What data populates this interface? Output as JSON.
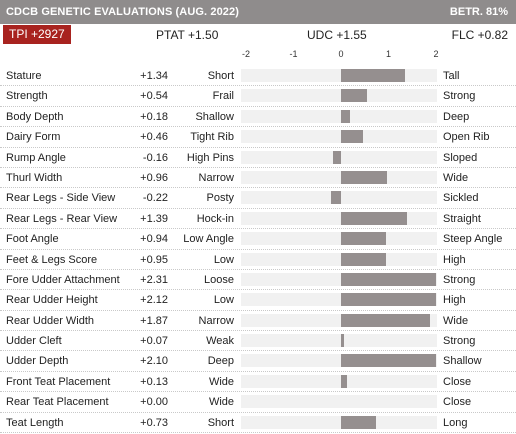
{
  "header": {
    "title": "CDCB GENETIC EVALUATIONS (AUG. 2022)",
    "reliability": "BETR. 81%"
  },
  "summary": {
    "tpi": "TPI +2927",
    "ptat": "PTAT +1.50",
    "udc": "UDC +1.55",
    "flc": "FLC +0.82"
  },
  "scale": {
    "ticks": [
      "-2",
      "-1",
      "0",
      "1",
      "2"
    ],
    "min": -2,
    "max": 2
  },
  "traits": [
    {
      "name": "Stature",
      "value": "+1.34",
      "num": 1.34,
      "low": "Short",
      "high": "Tall"
    },
    {
      "name": "Strength",
      "value": "+0.54",
      "num": 0.54,
      "low": "Frail",
      "high": "Strong"
    },
    {
      "name": "Body Depth",
      "value": "+0.18",
      "num": 0.18,
      "low": "Shallow",
      "high": "Deep"
    },
    {
      "name": "Dairy Form",
      "value": "+0.46",
      "num": 0.46,
      "low": "Tight Rib",
      "high": "Open Rib"
    },
    {
      "name": "Rump Angle",
      "value": "-0.16",
      "num": -0.16,
      "low": "High Pins",
      "high": "Sloped"
    },
    {
      "name": "Thurl Width",
      "value": "+0.96",
      "num": 0.96,
      "low": "Narrow",
      "high": "Wide"
    },
    {
      "name": "Rear Legs - Side View",
      "value": "-0.22",
      "num": -0.22,
      "low": "Posty",
      "high": "Sickled"
    },
    {
      "name": "Rear Legs - Rear View",
      "value": "+1.39",
      "num": 1.39,
      "low": "Hock-in",
      "high": "Straight"
    },
    {
      "name": "Foot Angle",
      "value": "+0.94",
      "num": 0.94,
      "low": "Low Angle",
      "high": "Steep Angle"
    },
    {
      "name": "Feet & Legs Score",
      "value": "+0.95",
      "num": 0.95,
      "low": "Low",
      "high": "High"
    },
    {
      "name": "Fore Udder Attachment",
      "value": "+2.31",
      "num": 2.31,
      "low": "Loose",
      "high": "Strong"
    },
    {
      "name": "Rear Udder Height",
      "value": "+2.12",
      "num": 2.12,
      "low": "Low",
      "high": "High"
    },
    {
      "name": "Rear Udder Width",
      "value": "+1.87",
      "num": 1.87,
      "low": "Narrow",
      "high": "Wide"
    },
    {
      "name": "Udder Cleft",
      "value": "+0.07",
      "num": 0.07,
      "low": "Weak",
      "high": "Strong"
    },
    {
      "name": "Udder Depth",
      "value": "+2.10",
      "num": 2.1,
      "low": "Deep",
      "high": "Shallow"
    },
    {
      "name": "Front Teat Placement",
      "value": "+0.13",
      "num": 0.13,
      "low": "Wide",
      "high": "Close"
    },
    {
      "name": "Rear Teat Placement",
      "value": "+0.00",
      "num": 0.0,
      "low": "Wide",
      "high": "Close"
    },
    {
      "name": "Teat Length",
      "value": "+0.73",
      "num": 0.73,
      "low": "Short",
      "high": "Long"
    }
  ],
  "colors": {
    "header_bg": "#8f8c8c",
    "tpi_bg": "#a8231f",
    "bar": "#958f8f",
    "track": "#f1f1f1"
  }
}
